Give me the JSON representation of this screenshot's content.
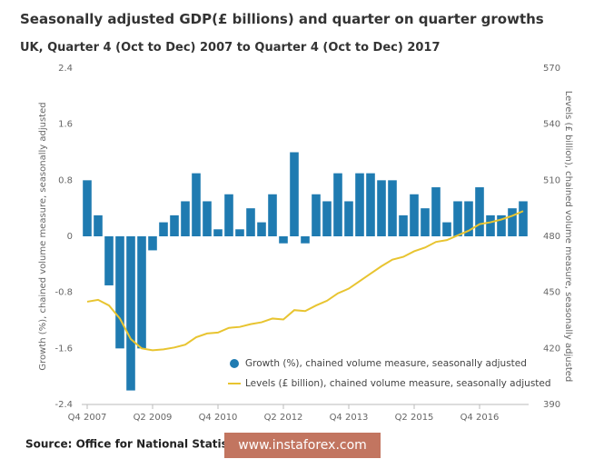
{
  "chart_data": {
    "type": "bar_line",
    "title": "Seasonally adjusted GDP(£ billions) and quarter on  quarter growths",
    "subtitle": "UK, Quarter 4 (Oct to Dec) 2007 to Quarter 4 (Oct to Dec) 2017",
    "y_label": "Growth (%), chained volume measure, seasonally adjusted",
    "y2_label": "Levels (£ billion), chained volume measure, seasonally adjusted",
    "source": "Source: Office for National Statistics",
    "watermark": "www.instaforex.com",
    "categories": [
      "Q4 2007",
      null,
      null,
      null,
      null,
      null,
      "Q2 2009",
      null,
      null,
      null,
      null,
      null,
      "Q4 2010",
      null,
      null,
      null,
      null,
      null,
      "Q2 2012",
      null,
      null,
      null,
      null,
      null,
      "Q4 2013",
      null,
      null,
      null,
      null,
      null,
      "Q2 2015",
      null,
      null,
      null,
      null,
      null,
      "Q4 2016",
      null,
      null,
      null,
      null
    ],
    "ylim": [
      -2.4,
      2.4
    ],
    "yticks": [
      -2.4,
      -1.6,
      -0.8,
      0,
      0.8,
      1.6,
      2.4
    ],
    "y2lim": [
      390,
      570
    ],
    "y2ticks": [
      390,
      420,
      450,
      480,
      510,
      540,
      570
    ],
    "grid": false,
    "series": [
      {
        "name": "Growth (%), chained volume measure, seasonally adjusted",
        "type": "bar",
        "color": "#1f7bb1",
        "values": [
          0.8,
          0.3,
          -0.7,
          -1.6,
          -2.2,
          -1.6,
          -0.2,
          0.2,
          0.3,
          0.5,
          0.9,
          0.5,
          0.1,
          0.6,
          0.1,
          0.4,
          0.2,
          0.6,
          -0.1,
          1.2,
          -0.1,
          0.6,
          0.5,
          0.9,
          0.5,
          0.9,
          0.9,
          0.8,
          0.8,
          0.3,
          0.6,
          0.4,
          0.7,
          0.2,
          0.5,
          0.5,
          0.7,
          0.3,
          0.3,
          0.4,
          0.5
        ]
      },
      {
        "name": "Levels (£ billion), chained volume measure, seasonally adjusted",
        "type": "line",
        "axis": "y2",
        "color": "#e8c430",
        "values": [
          445,
          446,
          443,
          436,
          425,
          420,
          419,
          419.5,
          420.5,
          422,
          426,
          428,
          428.5,
          431,
          431.5,
          433,
          434,
          436,
          435.5,
          440.5,
          440,
          443,
          445.5,
          449.5,
          452,
          456,
          460,
          464,
          467.5,
          469,
          472,
          474,
          477,
          478,
          480.5,
          483,
          486.5,
          487.5,
          489,
          491,
          493.5
        ]
      }
    ]
  }
}
